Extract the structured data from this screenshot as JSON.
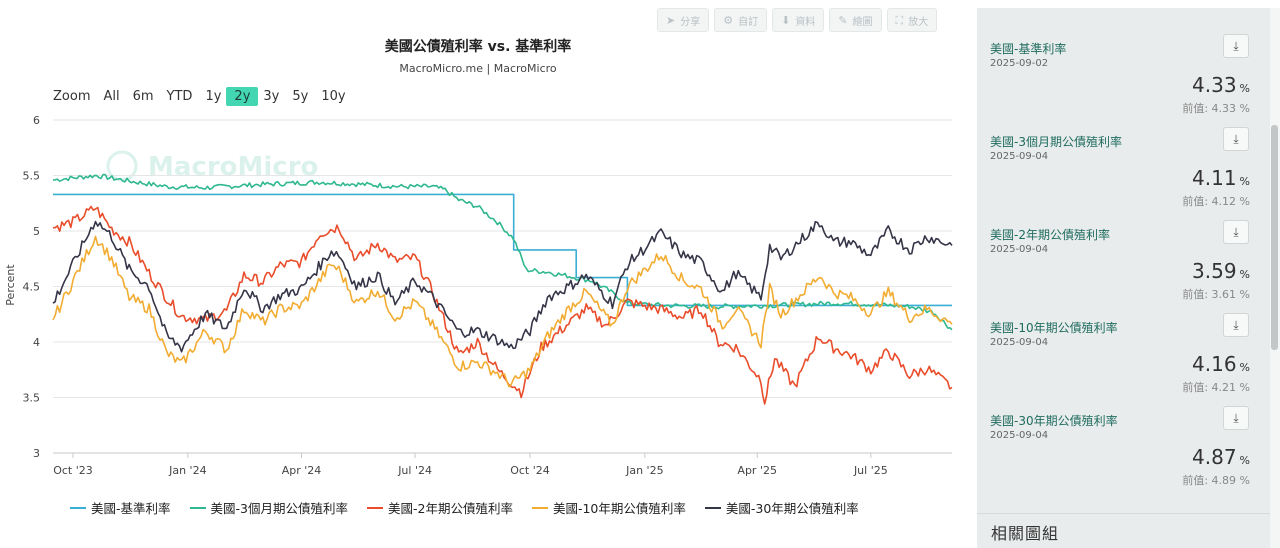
{
  "toolbar": {
    "share": "分享",
    "custom": "自訂",
    "data": "資料",
    "draw": "繪圖",
    "expand": "放大"
  },
  "zoom": {
    "label": "Zoom",
    "options": [
      "All",
      "6m",
      "YTD",
      "1y",
      "2y",
      "3y",
      "5y",
      "10y"
    ],
    "active": "2y"
  },
  "watermark": "MacroMicro",
  "chart_data": {
    "type": "line",
    "title": "美國公債殖利率 vs. 基準利率",
    "subtitle": "MacroMicro.me | MacroMicro",
    "ylabel": "Percent",
    "xlabel": "",
    "ylim": [
      3,
      6
    ],
    "yticks": [
      3,
      3.5,
      4,
      4.5,
      5,
      5.5,
      6
    ],
    "xlim": [
      "2023-09-15",
      "2025-09-04"
    ],
    "xticks": [
      {
        "label": "Oct '23",
        "date": "2023-10-01"
      },
      {
        "label": "Jan '24",
        "date": "2024-01-01"
      },
      {
        "label": "Apr '24",
        "date": "2024-04-01"
      },
      {
        "label": "Jul '24",
        "date": "2024-07-01"
      },
      {
        "label": "Oct '24",
        "date": "2024-10-01"
      },
      {
        "label": "Jan '25",
        "date": "2025-01-01"
      },
      {
        "label": "Apr '25",
        "date": "2025-04-01"
      },
      {
        "label": "Jul '25",
        "date": "2025-07-01"
      }
    ],
    "grid": true,
    "legend_position": "bottom",
    "series": [
      {
        "name": "美國-基準利率",
        "color": "#3aafd6",
        "step": true,
        "points": [
          [
            "2023-09-15",
            5.33
          ],
          [
            "2024-09-18",
            4.83
          ],
          [
            "2024-11-07",
            4.58
          ],
          [
            "2024-12-18",
            4.33
          ],
          [
            "2025-09-04",
            4.33
          ]
        ]
      },
      {
        "name": "美國-3個月期公債殖利率",
        "color": "#2fb88f",
        "points": [
          [
            "2023-09-15",
            5.46
          ],
          [
            "2023-10-20",
            5.5
          ],
          [
            "2023-11-15",
            5.45
          ],
          [
            "2023-12-15",
            5.4
          ],
          [
            "2024-01-15",
            5.39
          ],
          [
            "2024-03-01",
            5.42
          ],
          [
            "2024-04-15",
            5.44
          ],
          [
            "2024-05-20",
            5.42
          ],
          [
            "2024-06-20",
            5.4
          ],
          [
            "2024-07-15",
            5.4
          ],
          [
            "2024-07-25",
            5.37
          ],
          [
            "2024-08-05",
            5.28
          ],
          [
            "2024-08-20",
            5.22
          ],
          [
            "2024-09-05",
            5.08
          ],
          [
            "2024-09-18",
            4.93
          ],
          [
            "2024-09-28",
            4.65
          ],
          [
            "2024-10-15",
            4.63
          ],
          [
            "2024-11-07",
            4.58
          ],
          [
            "2024-11-20",
            4.55
          ],
          [
            "2024-12-05",
            4.45
          ],
          [
            "2024-12-18",
            4.35
          ],
          [
            "2025-01-15",
            4.33
          ],
          [
            "2025-03-01",
            4.32
          ],
          [
            "2025-04-15",
            4.33
          ],
          [
            "2025-06-01",
            4.35
          ],
          [
            "2025-07-01",
            4.34
          ],
          [
            "2025-08-01",
            4.32
          ],
          [
            "2025-08-20",
            4.27
          ],
          [
            "2025-09-04",
            4.11
          ]
        ]
      },
      {
        "name": "美國-2年期公債殖利率",
        "color": "#e94d2b",
        "points": [
          [
            "2023-09-15",
            5.03
          ],
          [
            "2023-10-01",
            5.08
          ],
          [
            "2023-10-19",
            5.21
          ],
          [
            "2023-11-01",
            5.02
          ],
          [
            "2023-11-15",
            4.9
          ],
          [
            "2023-12-01",
            4.62
          ],
          [
            "2023-12-15",
            4.4
          ],
          [
            "2023-12-27",
            4.23
          ],
          [
            "2024-01-15",
            4.2
          ],
          [
            "2024-02-01",
            4.28
          ],
          [
            "2024-02-15",
            4.6
          ],
          [
            "2024-03-01",
            4.54
          ],
          [
            "2024-03-15",
            4.69
          ],
          [
            "2024-04-01",
            4.72
          ],
          [
            "2024-04-16",
            4.98
          ],
          [
            "2024-05-01",
            5.04
          ],
          [
            "2024-05-15",
            4.74
          ],
          [
            "2024-06-01",
            4.89
          ],
          [
            "2024-06-15",
            4.73
          ],
          [
            "2024-07-01",
            4.76
          ],
          [
            "2024-07-15",
            4.45
          ],
          [
            "2024-08-05",
            3.88
          ],
          [
            "2024-08-20",
            4.0
          ],
          [
            "2024-09-05",
            3.75
          ],
          [
            "2024-09-24",
            3.55
          ],
          [
            "2024-10-10",
            3.95
          ],
          [
            "2024-10-25",
            4.1
          ],
          [
            "2024-11-15",
            4.3
          ],
          [
            "2024-12-01",
            4.15
          ],
          [
            "2024-12-18",
            4.36
          ],
          [
            "2025-01-15",
            4.29
          ],
          [
            "2025-02-01",
            4.22
          ],
          [
            "2025-02-15",
            4.3
          ],
          [
            "2025-03-01",
            4.0
          ],
          [
            "2025-03-15",
            3.95
          ],
          [
            "2025-04-04",
            3.66
          ],
          [
            "2025-04-07",
            3.47
          ],
          [
            "2025-04-15",
            3.85
          ],
          [
            "2025-05-01",
            3.6
          ],
          [
            "2025-05-20",
            4.05
          ],
          [
            "2025-06-01",
            3.95
          ],
          [
            "2025-06-15",
            3.88
          ],
          [
            "2025-07-01",
            3.75
          ],
          [
            "2025-07-15",
            3.92
          ],
          [
            "2025-08-01",
            3.7
          ],
          [
            "2025-08-15",
            3.76
          ],
          [
            "2025-09-04",
            3.59
          ]
        ]
      },
      {
        "name": "美國-10年期公債殖利率",
        "color": "#f2ac32",
        "points": [
          [
            "2023-09-15",
            4.2
          ],
          [
            "2023-10-01",
            4.55
          ],
          [
            "2023-10-19",
            4.95
          ],
          [
            "2023-11-01",
            4.75
          ],
          [
            "2023-11-15",
            4.4
          ],
          [
            "2023-12-01",
            4.3
          ],
          [
            "2023-12-15",
            3.9
          ],
          [
            "2023-12-27",
            3.8
          ],
          [
            "2024-01-15",
            4.1
          ],
          [
            "2024-02-01",
            3.93
          ],
          [
            "2024-02-15",
            4.3
          ],
          [
            "2024-03-01",
            4.18
          ],
          [
            "2024-03-15",
            4.3
          ],
          [
            "2024-04-01",
            4.33
          ],
          [
            "2024-04-25",
            4.7
          ],
          [
            "2024-05-01",
            4.65
          ],
          [
            "2024-05-15",
            4.35
          ],
          [
            "2024-06-01",
            4.47
          ],
          [
            "2024-06-15",
            4.22
          ],
          [
            "2024-07-01",
            4.36
          ],
          [
            "2024-07-15",
            4.15
          ],
          [
            "2024-08-05",
            3.78
          ],
          [
            "2024-08-20",
            3.82
          ],
          [
            "2024-09-05",
            3.72
          ],
          [
            "2024-09-16",
            3.62
          ],
          [
            "2024-10-01",
            3.75
          ],
          [
            "2024-10-15",
            4.05
          ],
          [
            "2024-11-01",
            4.3
          ],
          [
            "2024-11-15",
            4.45
          ],
          [
            "2024-12-06",
            4.15
          ],
          [
            "2024-12-18",
            4.5
          ],
          [
            "2025-01-14",
            4.79
          ],
          [
            "2025-02-01",
            4.55
          ],
          [
            "2025-02-15",
            4.48
          ],
          [
            "2025-03-04",
            4.15
          ],
          [
            "2025-03-15",
            4.3
          ],
          [
            "2025-04-04",
            3.99
          ],
          [
            "2025-04-11",
            4.48
          ],
          [
            "2025-04-20",
            4.25
          ],
          [
            "2025-05-21",
            4.6
          ],
          [
            "2025-06-01",
            4.45
          ],
          [
            "2025-06-15",
            4.4
          ],
          [
            "2025-07-01",
            4.26
          ],
          [
            "2025-07-15",
            4.45
          ],
          [
            "2025-08-01",
            4.22
          ],
          [
            "2025-08-15",
            4.3
          ],
          [
            "2025-09-04",
            4.16
          ]
        ]
      },
      {
        "name": "美國-30年期公債殖利率",
        "color": "#353548",
        "points": [
          [
            "2023-09-15",
            4.35
          ],
          [
            "2023-10-01",
            4.7
          ],
          [
            "2023-10-19",
            5.1
          ],
          [
            "2023-11-01",
            4.95
          ],
          [
            "2023-11-15",
            4.65
          ],
          [
            "2023-12-01",
            4.5
          ],
          [
            "2023-12-15",
            4.05
          ],
          [
            "2023-12-27",
            3.95
          ],
          [
            "2024-01-15",
            4.25
          ],
          [
            "2024-02-01",
            4.12
          ],
          [
            "2024-02-15",
            4.5
          ],
          [
            "2024-03-01",
            4.3
          ],
          [
            "2024-03-15",
            4.42
          ],
          [
            "2024-04-01",
            4.48
          ],
          [
            "2024-04-25",
            4.82
          ],
          [
            "2024-05-01",
            4.79
          ],
          [
            "2024-05-15",
            4.5
          ],
          [
            "2024-06-01",
            4.6
          ],
          [
            "2024-06-15",
            4.35
          ],
          [
            "2024-07-01",
            4.55
          ],
          [
            "2024-07-15",
            4.4
          ],
          [
            "2024-08-05",
            4.09
          ],
          [
            "2024-08-20",
            4.1
          ],
          [
            "2024-09-05",
            4.02
          ],
          [
            "2024-09-16",
            3.95
          ],
          [
            "2024-10-01",
            4.1
          ],
          [
            "2024-10-15",
            4.4
          ],
          [
            "2024-11-01",
            4.5
          ],
          [
            "2024-11-15",
            4.6
          ],
          [
            "2024-12-06",
            4.35
          ],
          [
            "2024-12-18",
            4.7
          ],
          [
            "2025-01-14",
            4.98
          ],
          [
            "2025-02-01",
            4.78
          ],
          [
            "2025-02-15",
            4.72
          ],
          [
            "2025-03-04",
            4.45
          ],
          [
            "2025-03-15",
            4.62
          ],
          [
            "2025-04-04",
            4.4
          ],
          [
            "2025-04-11",
            4.86
          ],
          [
            "2025-04-20",
            4.75
          ],
          [
            "2025-05-21",
            5.08
          ],
          [
            "2025-06-01",
            4.9
          ],
          [
            "2025-06-15",
            4.9
          ],
          [
            "2025-07-01",
            4.78
          ],
          [
            "2025-07-15",
            5.0
          ],
          [
            "2025-08-01",
            4.83
          ],
          [
            "2025-08-15",
            4.95
          ],
          [
            "2025-09-04",
            4.87
          ]
        ]
      }
    ]
  },
  "panel": {
    "cards": [
      {
        "name": "美國-基準利率",
        "date": "2025-09-02",
        "value": "4.33",
        "unit": "%",
        "prev": "前值: 4.33 %"
      },
      {
        "name": "美國-3個月期公債殖利率",
        "date": "2025-09-04",
        "value": "4.11",
        "unit": "%",
        "prev": "前值: 4.12 %"
      },
      {
        "name": "美國-2年期公債殖利率",
        "date": "2025-09-04",
        "value": "3.59",
        "unit": "%",
        "prev": "前值: 3.61 %"
      },
      {
        "name": "美國-10年期公債殖利率",
        "date": "2025-09-04",
        "value": "4.16",
        "unit": "%",
        "prev": "前值: 4.21 %"
      },
      {
        "name": "美國-30年期公債殖利率",
        "date": "2025-09-04",
        "value": "4.87",
        "unit": "%",
        "prev": "前值: 4.89 %"
      }
    ],
    "related_title": "相關圖組"
  }
}
